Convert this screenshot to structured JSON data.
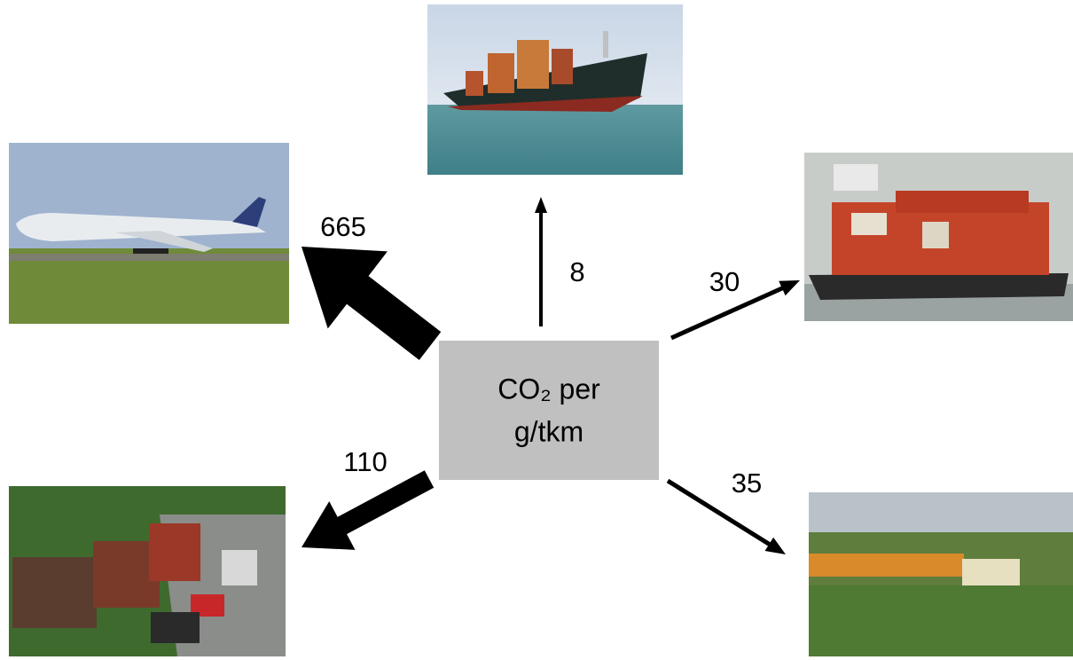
{
  "center": {
    "line1": "CO₂ per",
    "line2": "g/tkm"
  },
  "arrows": [
    {
      "value": 665
    },
    {
      "value": 8
    },
    {
      "value": 30
    },
    {
      "value": 110
    },
    {
      "value": 35
    }
  ]
}
